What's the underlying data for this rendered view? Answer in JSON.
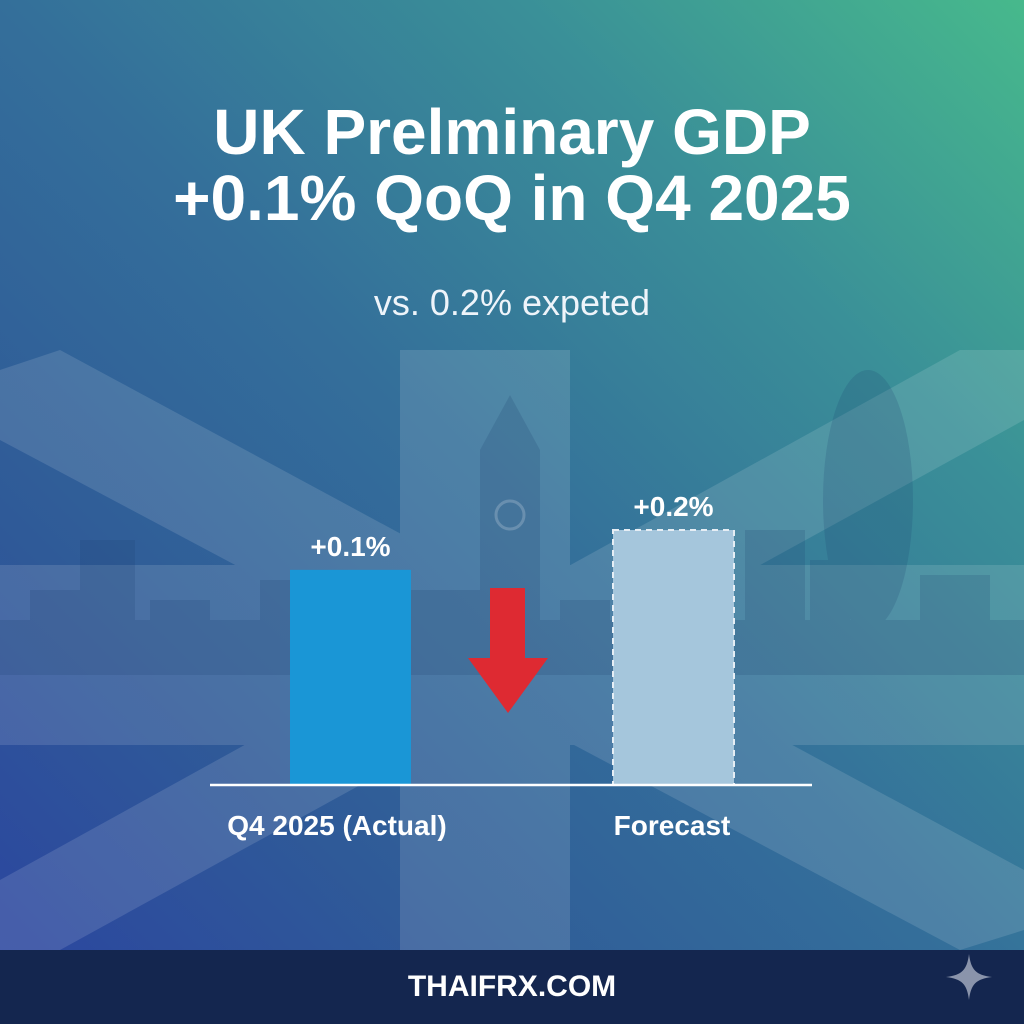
{
  "header": {
    "title_line1": "UK Prelminary GDP",
    "title_line2": "+0.1% QoQ in Q4 2025",
    "subtitle": "vs. 0.2% expeted"
  },
  "footer": {
    "brand": "THAIFRX.COM",
    "icon": "sparkle-icon"
  },
  "colors": {
    "actual": "#1a96d6",
    "forecast": "#a5c6dc",
    "arrow": "#de2a32",
    "footer": "#14264f"
  },
  "chart_data": {
    "type": "bar",
    "title": "UK Prelminary GDP +0.1% QoQ in Q4 2025",
    "xlabel": "",
    "ylabel": "",
    "categories": [
      "Q4 2025 (Actual)",
      "Forecast"
    ],
    "values": [
      0.1,
      0.2
    ],
    "data_labels": [
      "+0.1%",
      "+0.2%"
    ],
    "ylim": [
      0,
      0.2
    ],
    "grid": false,
    "annotations": [
      "down-arrow between bars indicating miss"
    ]
  }
}
